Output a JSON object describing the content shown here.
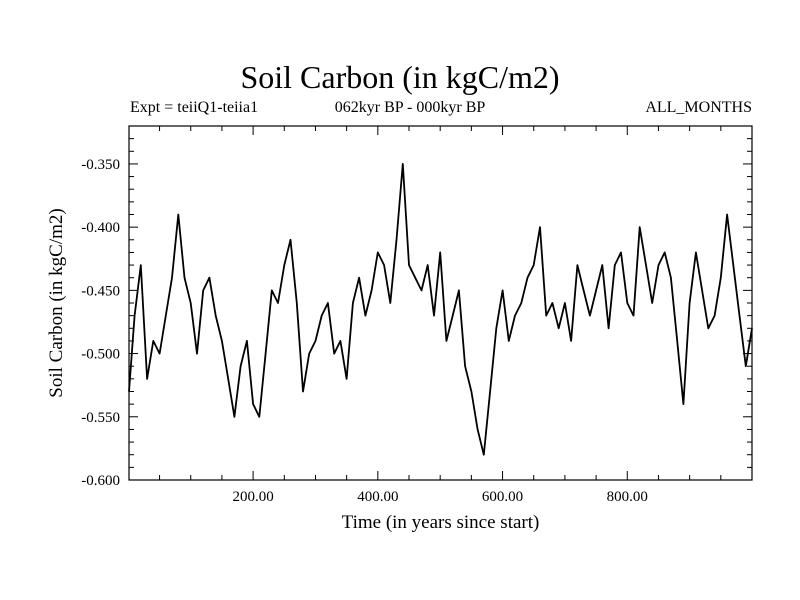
{
  "chart_data": {
    "type": "line",
    "title": "Soil Carbon (in kgC/m2)",
    "subtitle_left": "Expt = teiiQ1-teiia1",
    "subtitle_center": "062kyr BP - 000kyr BP",
    "subtitle_right": "ALL_MONTHS",
    "xlabel": "Time (in years since start)",
    "ylabel": "Soil Carbon (in kgC/m2)",
    "xlim": [
      1,
      1000
    ],
    "ylim": [
      -0.6,
      -0.32
    ],
    "x_ticks": [
      200,
      400,
      600,
      800
    ],
    "x_tick_labels": [
      "200.00",
      "400.00",
      "600.00",
      "800.00"
    ],
    "y_ticks": [
      -0.6,
      -0.55,
      -0.5,
      -0.45,
      -0.4,
      -0.35
    ],
    "y_tick_labels": [
      "-0.600",
      "-0.550",
      "-0.500",
      "-0.450",
      "-0.400",
      "-0.350"
    ],
    "grid": false,
    "legend": "none",
    "line_color": "#000000",
    "series": [
      {
        "x": [
          1,
          10,
          20,
          30,
          40,
          50,
          60,
          70,
          80,
          90,
          100,
          110,
          120,
          130,
          140,
          150,
          160,
          170,
          180,
          190,
          200,
          210,
          220,
          230,
          240,
          250,
          260,
          270,
          280,
          290,
          300,
          310,
          320,
          330,
          340,
          350,
          360,
          370,
          380,
          390,
          400,
          410,
          420,
          430,
          440,
          450,
          460,
          470,
          480,
          490,
          500,
          510,
          520,
          530,
          540,
          550,
          560,
          570,
          580,
          590,
          600,
          610,
          620,
          630,
          640,
          650,
          660,
          670,
          680,
          690,
          700,
          710,
          720,
          730,
          740,
          750,
          760,
          770,
          780,
          790,
          800,
          810,
          820,
          830,
          840,
          850,
          860,
          870,
          880,
          890,
          900,
          910,
          920,
          930,
          940,
          950,
          960,
          970,
          980,
          990,
          1000
        ],
        "values": [
          -0.53,
          -0.47,
          -0.43,
          -0.52,
          -0.49,
          -0.5,
          -0.47,
          -0.44,
          -0.39,
          -0.44,
          -0.46,
          -0.5,
          -0.45,
          -0.44,
          -0.47,
          -0.49,
          -0.52,
          -0.55,
          -0.51,
          -0.49,
          -0.54,
          -0.55,
          -0.5,
          -0.45,
          -0.46,
          -0.43,
          -0.41,
          -0.46,
          -0.53,
          -0.5,
          -0.49,
          -0.47,
          -0.46,
          -0.5,
          -0.49,
          -0.52,
          -0.46,
          -0.44,
          -0.47,
          -0.45,
          -0.42,
          -0.43,
          -0.46,
          -0.41,
          -0.35,
          -0.43,
          -0.44,
          -0.45,
          -0.43,
          -0.47,
          -0.42,
          -0.49,
          -0.47,
          -0.45,
          -0.51,
          -0.53,
          -0.56,
          -0.58,
          -0.53,
          -0.48,
          -0.45,
          -0.49,
          -0.47,
          -0.46,
          -0.44,
          -0.43,
          -0.4,
          -0.47,
          -0.46,
          -0.48,
          -0.46,
          -0.49,
          -0.43,
          -0.45,
          -0.47,
          -0.45,
          -0.43,
          -0.48,
          -0.43,
          -0.42,
          -0.46,
          -0.47,
          -0.4,
          -0.43,
          -0.46,
          -0.43,
          -0.42,
          -0.44,
          -0.49,
          -0.54,
          -0.46,
          -0.42,
          -0.45,
          -0.48,
          -0.47,
          -0.44,
          -0.39,
          -0.43,
          -0.47,
          -0.51,
          -0.48
        ]
      }
    ]
  }
}
